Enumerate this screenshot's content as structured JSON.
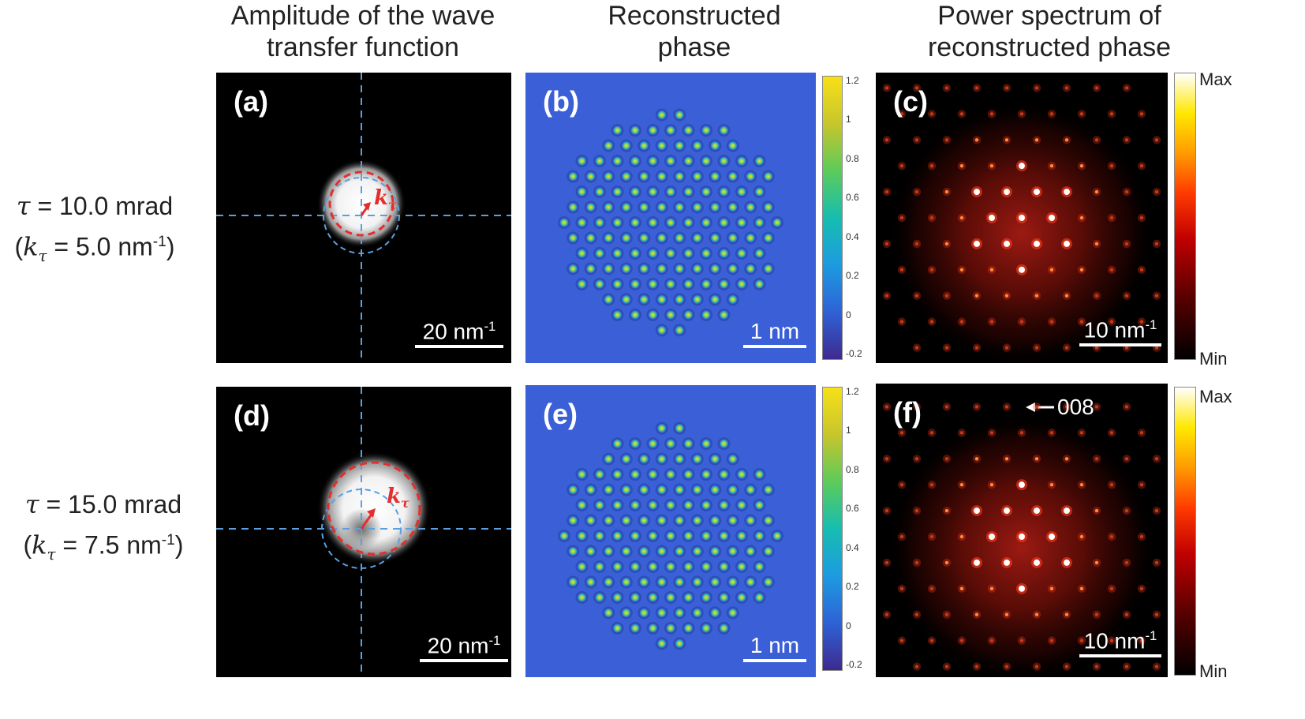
{
  "columns": [
    {
      "line1": "Amplitude of the wave",
      "line2": "transfer function"
    },
    {
      "line1": "Reconstructed",
      "line2": "phase"
    },
    {
      "line1": "Power spectrum of",
      "line2": "reconstructed phase"
    }
  ],
  "rows": [
    {
      "tau_value": "= 10.0 mrad",
      "k_value": "= 5.0 nm",
      "exp": "-1"
    },
    {
      "tau_value": "= 15.0 mrad",
      "k_value": "= 7.5 nm",
      "exp": "-1"
    }
  ],
  "symbols": {
    "tau": "τ",
    "k": "k",
    "sub": "τ",
    "open": "(",
    "close": ")"
  },
  "panels": {
    "a": "(a)",
    "b": "(b)",
    "c": "(c)",
    "d": "(d)",
    "e": "(e)",
    "f": "(f)",
    "k_tau_base": "k",
    "k_tau_sub": "τ"
  },
  "scalebars": {
    "wtf": {
      "value": "20 nm",
      "exp": "-1"
    },
    "phase": {
      "value": "1 nm"
    },
    "ps": {
      "value": "10 nm",
      "exp": "-1"
    }
  },
  "phase_colorbar": {
    "ticks": [
      "1.2",
      "1",
      "0.8",
      "0.6",
      "0.4",
      "0.2",
      "0",
      "-0.2"
    ]
  },
  "ps_colorbar": {
    "max": "Max",
    "min": "Min"
  },
  "annotation_008": "008",
  "colors": {
    "guide_dashed": "#5aa0e0",
    "aperture_dashed": "#e52d2d",
    "arrow": "#e52d2d",
    "phase_bg": "#3b5fd6",
    "spot_hot": "#ffffff"
  }
}
